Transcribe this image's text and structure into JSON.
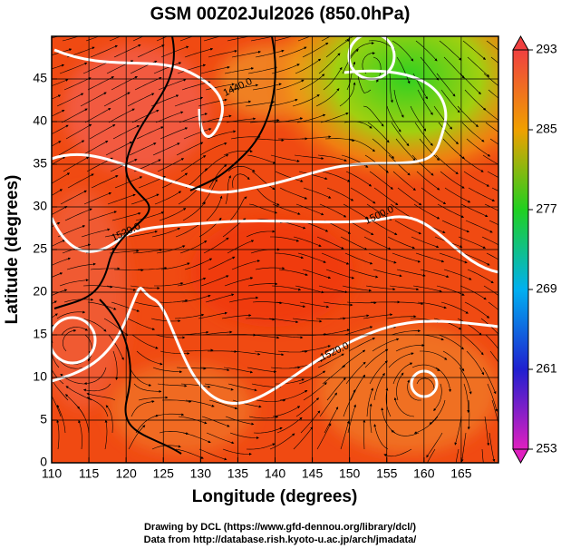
{
  "chart_data": {
    "type": "map",
    "title": "GSM 00Z02Jul2026 (850.0hPa)",
    "xlabel": "Longitude (degrees)",
    "ylabel": "Latitude (degrees)",
    "xlim": [
      110,
      170
    ],
    "ylim": [
      0,
      50
    ],
    "xticks": [
      110,
      115,
      120,
      125,
      130,
      135,
      140,
      145,
      150,
      155,
      160,
      165
    ],
    "yticks": [
      0,
      5,
      10,
      15,
      20,
      25,
      30,
      35,
      40,
      45
    ],
    "grid": true,
    "colorbar": {
      "lim": [
        253,
        293
      ],
      "ticks": [
        253,
        261,
        269,
        277,
        285,
        293
      ]
    },
    "contour_labels": [
      {
        "text": "1440.0",
        "lon": 135,
        "lat": 44
      },
      {
        "text": "1520.0",
        "lon": 120,
        "lat": 27
      },
      {
        "text": "1500.0",
        "lon": 154,
        "lat": 29
      },
      {
        "text": "1520.0",
        "lon": 148,
        "lat": 13
      }
    ]
  },
  "footer": [
    "Drawing by DCL (https://www.gfd-dennou.org/library/dcl/)",
    "Data from http://database.rish.kyoto-u.ac.jp/arch/jmadata/"
  ]
}
